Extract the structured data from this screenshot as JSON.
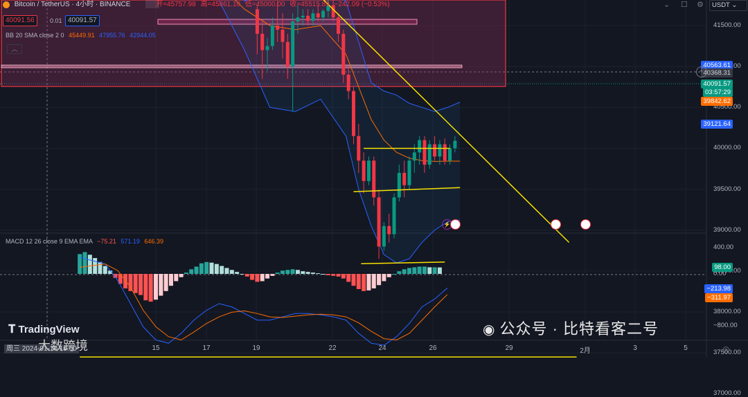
{
  "header": {
    "symbol": "Bitcoin / TetherUS · 4小时 · BINANCE",
    "open": "开=45757.98",
    "high": "高=45861.10",
    "low": "低=45000.00",
    "close": "收=45515.89",
    "change": "−242.09 (−0.53%)",
    "sell_price": "40091.56",
    "spread": "0.01",
    "buy_price": "40091.57",
    "currency": "USDT"
  },
  "bb_label": {
    "name": "BB 20 SMA close 2 0",
    "basis": "45449.91",
    "upper": "47955.76",
    "lower": "42944.05"
  },
  "macd_label": {
    "name": "MACD 12 26 close 9 EMA EMA",
    "hist": "−75.21",
    "macd": "571.19",
    "signal": "646.39"
  },
  "price_axis": {
    "ticks": [
      "41500.00",
      "41000.00",
      "40500.00",
      "40000.00",
      "39500.00",
      "39000.00",
      "38500.00",
      "38000.00",
      "37500.00",
      "37000.00"
    ],
    "tags": {
      "bb_upper": "40563.61",
      "crosshair": "40368.31",
      "last": "40091.57",
      "countdown": "03:57:29",
      "bb_basis": "39842.62",
      "bb_lower": "39121.64"
    }
  },
  "macd_axis": {
    "ticks": [
      "400.00",
      "0.00",
      "−800.00"
    ],
    "tags": {
      "hist": "98.00",
      "macd": "−213.98",
      "signal": "−311.97"
    }
  },
  "time_axis": {
    "ticks": [
      "15",
      "17",
      "19",
      "22",
      "24",
      "26",
      "29",
      "2月",
      "3",
      "5"
    ],
    "crosshair_date": "周三 2024-01-10 16:00"
  },
  "branding": {
    "logo": "TradingView",
    "watermark": "公众号 · 比特看客二号",
    "watermark2": "大数跨境"
  },
  "colors": {
    "bg": "#131722",
    "up": "#089981",
    "down": "#f23645",
    "bb": "#2962ff",
    "basis": "#ff6d00",
    "trend": "#f7e200",
    "zone_fill": "#8a2a5a",
    "zone_border": "#f23645",
    "hist_up": "#26a69a",
    "hist_up_light": "#b2dfdb",
    "hist_down": "#ff5252",
    "hist_down_light": "#ffcdd2"
  },
  "chart_data": [
    {
      "type": "candlestick",
      "title": "Bitcoin / TetherUS · 4小时 · BINANCE",
      "ylim": [
        36700,
        41900
      ],
      "x_tick_labels": [
        "15",
        "17",
        "19",
        "22",
        "24",
        "26",
        "29",
        "2月",
        "3",
        "5"
      ],
      "candles": [
        [
          19.0,
          41700,
          41750,
          41150,
          41400
        ],
        [
          19.2,
          41400,
          41550,
          40850,
          41200
        ],
        [
          19.4,
          41200,
          41350,
          40950,
          41250
        ],
        [
          19.6,
          41250,
          41600,
          41200,
          41500
        ],
        [
          19.8,
          41500,
          41800,
          41300,
          41450
        ],
        [
          20.0,
          41450,
          41650,
          41100,
          41300
        ],
        [
          20.2,
          41300,
          41400,
          40850,
          41000
        ],
        [
          20.4,
          41000,
          41650,
          40450,
          41550
        ],
        [
          20.6,
          41550,
          41750,
          41400,
          41600
        ],
        [
          20.8,
          41600,
          41700,
          41500,
          41620
        ],
        [
          21.0,
          41620,
          41700,
          41500,
          41560
        ],
        [
          21.2,
          41560,
          41700,
          41500,
          41650
        ],
        [
          21.4,
          41650,
          41750,
          41550,
          41600
        ],
        [
          21.6,
          41600,
          41700,
          41550,
          41680
        ],
        [
          21.8,
          41680,
          41850,
          41600,
          41750
        ],
        [
          22.0,
          41750,
          41850,
          41550,
          41600
        ],
        [
          22.2,
          41600,
          41650,
          41300,
          41400
        ],
        [
          22.4,
          41400,
          41450,
          40800,
          40900
        ],
        [
          22.6,
          40900,
          41000,
          40600,
          40700
        ],
        [
          22.8,
          40700,
          40750,
          40050,
          40150
        ],
        [
          23.0,
          40150,
          40300,
          39700,
          39850
        ],
        [
          23.2,
          39850,
          39950,
          39450,
          39600
        ],
        [
          23.4,
          39600,
          39900,
          39550,
          39850
        ],
        [
          23.6,
          39850,
          39900,
          39300,
          39400
        ],
        [
          23.8,
          39400,
          39500,
          38650,
          38800
        ],
        [
          24.0,
          38800,
          39100,
          38750,
          39050
        ],
        [
          24.2,
          39050,
          39200,
          38850,
          38950
        ],
        [
          24.4,
          38950,
          39450,
          38900,
          39400
        ],
        [
          24.6,
          39400,
          39800,
          39350,
          39700
        ],
        [
          24.8,
          39700,
          39850,
          39400,
          39550
        ],
        [
          25.0,
          39550,
          39900,
          39500,
          39850
        ],
        [
          25.2,
          39850,
          40050,
          39700,
          39950
        ],
        [
          25.4,
          39950,
          40150,
          39800,
          40100
        ],
        [
          25.6,
          40100,
          40150,
          39700,
          39800
        ],
        [
          25.8,
          39800,
          40100,
          39750,
          40050
        ],
        [
          26.0,
          40050,
          40150,
          39850,
          39900
        ],
        [
          26.2,
          39900,
          40100,
          39800,
          40050
        ],
        [
          26.4,
          40050,
          40120,
          39800,
          39850
        ],
        [
          26.6,
          39850,
          40050,
          39800,
          40000
        ],
        [
          26.8,
          40000,
          40150,
          39950,
          40092
        ]
      ],
      "bollinger": {
        "upper": [
          [
            17.5,
            42100
          ],
          [
            18.5,
            41800
          ],
          [
            19.5,
            41900
          ],
          [
            20.5,
            41950
          ],
          [
            21.5,
            41950
          ],
          [
            22.5,
            41800
          ],
          [
            23.0,
            41300
          ],
          [
            23.5,
            40800
          ],
          [
            24.0,
            40700
          ],
          [
            24.5,
            40650
          ],
          [
            25.0,
            40550
          ],
          [
            25.5,
            40500
          ],
          [
            26.0,
            40450
          ],
          [
            26.5,
            40500
          ],
          [
            27.0,
            40564
          ]
        ],
        "basis": [
          [
            17.5,
            42000
          ],
          [
            18.5,
            41700
          ],
          [
            19.5,
            41500
          ],
          [
            20.5,
            41450
          ],
          [
            21.5,
            41500
          ],
          [
            22.5,
            41150
          ],
          [
            23.0,
            40750
          ],
          [
            23.5,
            40350
          ],
          [
            24.0,
            40100
          ],
          [
            24.5,
            39950
          ],
          [
            25.0,
            39880
          ],
          [
            25.5,
            39850
          ],
          [
            26.0,
            39840
          ],
          [
            26.5,
            39843
          ],
          [
            27.0,
            39843
          ]
        ],
        "lower": [
          [
            17.5,
            41800
          ],
          [
            18.5,
            41200
          ],
          [
            19.5,
            40500
          ],
          [
            20.5,
            40450
          ],
          [
            21.5,
            40600
          ],
          [
            22.5,
            40150
          ],
          [
            23.0,
            39500
          ],
          [
            23.5,
            39050
          ],
          [
            24.0,
            38700
          ],
          [
            24.5,
            38600
          ],
          [
            25.0,
            38650
          ],
          [
            25.5,
            38850
          ],
          [
            26.0,
            39000
          ],
          [
            26.5,
            39100
          ],
          [
            27.0,
            39122
          ]
        ]
      },
      "trendlines": [
        {
          "from": [
            21.5,
            41850
          ],
          "to": [
            31.3,
            38850
          ]
        },
        {
          "from": [
            23.2,
            40000
          ],
          "to": [
            26.6,
            40000
          ]
        },
        {
          "from": [
            22.8,
            39470
          ],
          "to": [
            27.0,
            39520
          ]
        },
        {
          "from": [
            23.1,
            38590
          ],
          "to": [
            26.4,
            38610
          ]
        },
        {
          "from": [
            12.0,
            37450
          ],
          "to": [
            31.6,
            37450
          ]
        }
      ],
      "horizontal_levels": [
        40563.61,
        40368.31
      ]
    },
    {
      "type": "bar",
      "title": "MACD 12 26 close 9 EMA EMA",
      "ylim": [
        -1200,
        600
      ],
      "x_tick_labels": [
        "15",
        "17",
        "19",
        "22",
        "24",
        "26",
        "29",
        "2月",
        "3",
        "5"
      ],
      "histogram": [
        [
          12.0,
          300
        ],
        [
          12.2,
          330
        ],
        [
          12.4,
          290
        ],
        [
          12.6,
          240
        ],
        [
          12.8,
          180
        ],
        [
          13.0,
          120
        ],
        [
          13.2,
          50
        ],
        [
          13.4,
          -60
        ],
        [
          13.6,
          -150
        ],
        [
          13.8,
          -220
        ],
        [
          14.0,
          -260
        ],
        [
          14.2,
          -290
        ],
        [
          14.4,
          -320
        ],
        [
          14.6,
          -400
        ],
        [
          14.8,
          -420
        ],
        [
          15.0,
          -390
        ],
        [
          15.2,
          -330
        ],
        [
          15.4,
          -260
        ],
        [
          15.6,
          -180
        ],
        [
          15.8,
          -110
        ],
        [
          16.0,
          -50
        ],
        [
          16.2,
          20
        ],
        [
          16.4,
          70
        ],
        [
          16.6,
          110
        ],
        [
          16.8,
          160
        ],
        [
          17.0,
          180
        ],
        [
          17.2,
          170
        ],
        [
          17.4,
          150
        ],
        [
          17.6,
          120
        ],
        [
          17.8,
          90
        ],
        [
          18.0,
          60
        ],
        [
          18.2,
          30
        ],
        [
          18.4,
          0
        ],
        [
          18.6,
          -40
        ],
        [
          18.8,
          -90
        ],
        [
          19.0,
          -120
        ],
        [
          19.2,
          -110
        ],
        [
          19.4,
          -70
        ],
        [
          19.6,
          -30
        ],
        [
          19.8,
          20
        ],
        [
          20.0,
          50
        ],
        [
          20.2,
          60
        ],
        [
          20.4,
          70
        ],
        [
          20.6,
          60
        ],
        [
          20.8,
          40
        ],
        [
          21.0,
          30
        ],
        [
          21.2,
          20
        ],
        [
          21.4,
          10
        ],
        [
          21.6,
          0
        ],
        [
          21.8,
          -20
        ],
        [
          22.0,
          -30
        ],
        [
          22.2,
          -40
        ],
        [
          22.4,
          -70
        ],
        [
          22.6,
          -120
        ],
        [
          22.8,
          -180
        ],
        [
          23.0,
          -230
        ],
        [
          23.2,
          -260
        ],
        [
          23.4,
          -250
        ],
        [
          23.6,
          -220
        ],
        [
          23.8,
          -170
        ],
        [
          24.0,
          -110
        ],
        [
          24.2,
          -50
        ],
        [
          24.4,
          0
        ],
        [
          24.6,
          40
        ],
        [
          24.8,
          70
        ],
        [
          25.0,
          90
        ],
        [
          25.2,
          100
        ],
        [
          25.4,
          110
        ],
        [
          25.6,
          110
        ],
        [
          25.8,
          100
        ],
        [
          26.0,
          100
        ],
        [
          26.2,
          98
        ]
      ],
      "macd": [
        [
          12.0,
          250
        ],
        [
          13.0,
          150
        ],
        [
          13.5,
          -100
        ],
        [
          14.0,
          -450
        ],
        [
          14.5,
          -800
        ],
        [
          15.0,
          -1000
        ],
        [
          15.5,
          -1050
        ],
        [
          16.0,
          -900
        ],
        [
          16.5,
          -700
        ],
        [
          17.0,
          -550
        ],
        [
          17.5,
          -450
        ],
        [
          18.0,
          -500
        ],
        [
          18.5,
          -600
        ],
        [
          19.0,
          -700
        ],
        [
          19.5,
          -700
        ],
        [
          20.0,
          -650
        ],
        [
          20.5,
          -600
        ],
        [
          21.0,
          -600
        ],
        [
          21.5,
          -620
        ],
        [
          22.0,
          -650
        ],
        [
          22.5,
          -700
        ],
        [
          23.0,
          -900
        ],
        [
          23.5,
          -1050
        ],
        [
          24.0,
          -1080
        ],
        [
          24.5,
          -950
        ],
        [
          25.0,
          -750
        ],
        [
          25.5,
          -500
        ],
        [
          26.0,
          -380
        ],
        [
          26.5,
          -214
        ]
      ],
      "signal": [
        [
          12.0,
          100
        ],
        [
          13.0,
          150
        ],
        [
          13.5,
          50
        ],
        [
          14.0,
          -200
        ],
        [
          14.5,
          -550
        ],
        [
          15.0,
          -800
        ],
        [
          15.5,
          -950
        ],
        [
          16.0,
          -1000
        ],
        [
          16.5,
          -880
        ],
        [
          17.0,
          -750
        ],
        [
          17.5,
          -650
        ],
        [
          18.0,
          -580
        ],
        [
          18.5,
          -560
        ],
        [
          19.0,
          -600
        ],
        [
          19.5,
          -650
        ],
        [
          20.0,
          -660
        ],
        [
          20.5,
          -640
        ],
        [
          21.0,
          -620
        ],
        [
          21.5,
          -610
        ],
        [
          22.0,
          -620
        ],
        [
          22.5,
          -650
        ],
        [
          23.0,
          -740
        ],
        [
          23.5,
          -870
        ],
        [
          24.0,
          -980
        ],
        [
          24.5,
          -1000
        ],
        [
          25.0,
          -900
        ],
        [
          25.5,
          -700
        ],
        [
          26.0,
          -500
        ],
        [
          26.5,
          -312
        ]
      ]
    }
  ]
}
